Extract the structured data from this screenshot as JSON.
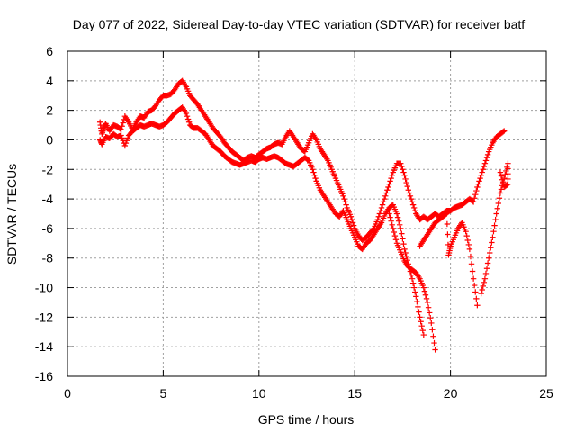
{
  "chart_data": {
    "type": "scatter",
    "title": "Day 077 of 2022, Sidereal Day-to-day VTEC variation (SDTVAR) for receiver batf",
    "xlabel": "GPS time / hours",
    "ylabel": "SDTVAR / TECUs",
    "xlim": [
      0,
      25
    ],
    "ylim": [
      -16,
      6
    ],
    "xticks": [
      0,
      5,
      10,
      15,
      20,
      25
    ],
    "yticks": [
      -16,
      -14,
      -12,
      -10,
      -8,
      -6,
      -4,
      -2,
      0,
      2,
      4,
      6
    ],
    "grid": true,
    "marker": "+",
    "color": "#ff0000",
    "series": [
      {
        "points": [
          [
            1.7,
            1.2
          ],
          [
            1.8,
            0.4
          ],
          [
            1.9,
            0.8
          ],
          [
            2.0,
            1.1
          ],
          [
            2.2,
            0.6
          ],
          [
            2.4,
            1.0
          ],
          [
            2.6,
            0.9
          ],
          [
            2.8,
            0.7
          ],
          [
            3.0,
            1.6
          ],
          [
            3.2,
            1.2
          ],
          [
            3.4,
            0.7
          ],
          [
            3.6,
            1.2
          ],
          [
            3.8,
            1.6
          ],
          [
            4.0,
            1.5
          ],
          [
            4.2,
            1.9
          ],
          [
            4.4,
            2.0
          ],
          [
            4.6,
            2.3
          ],
          [
            4.8,
            2.7
          ],
          [
            5.0,
            3.0
          ],
          [
            5.2,
            3.0
          ],
          [
            5.4,
            3.1
          ],
          [
            5.6,
            3.4
          ],
          [
            5.8,
            3.8
          ],
          [
            6.0,
            4.0
          ],
          [
            6.2,
            3.6
          ],
          [
            6.4,
            3.0
          ],
          [
            6.6,
            2.7
          ],
          [
            6.8,
            2.4
          ],
          [
            7.0,
            2.0
          ],
          [
            7.2,
            1.6
          ],
          [
            7.4,
            1.2
          ],
          [
            7.6,
            0.8
          ],
          [
            7.8,
            0.5
          ],
          [
            8.0,
            0.2
          ],
          [
            8.2,
            -0.2
          ],
          [
            8.4,
            -0.5
          ],
          [
            8.6,
            -0.8
          ],
          [
            8.8,
            -1.0
          ],
          [
            9.0,
            -1.2
          ],
          [
            9.2,
            -1.4
          ],
          [
            9.4,
            -1.2
          ],
          [
            9.6,
            -1.1
          ],
          [
            9.8,
            -1.2
          ],
          [
            10.0,
            -1.0
          ],
          [
            10.2,
            -0.8
          ],
          [
            10.4,
            -0.6
          ],
          [
            10.6,
            -0.5
          ],
          [
            10.8,
            -0.3
          ],
          [
            11.0,
            -0.2
          ],
          [
            11.2,
            -0.3
          ],
          [
            11.4,
            0.2
          ],
          [
            11.6,
            0.6
          ],
          [
            11.8,
            0.2
          ],
          [
            12.0,
            -0.2
          ],
          [
            12.2,
            -0.6
          ],
          [
            12.4,
            -0.8
          ],
          [
            12.6,
            -0.2
          ],
          [
            12.8,
            0.4
          ],
          [
            13.0,
            0.0
          ],
          [
            13.2,
            -0.6
          ],
          [
            13.4,
            -1.0
          ],
          [
            13.6,
            -1.4
          ],
          [
            13.8,
            -2.0
          ],
          [
            14.0,
            -2.6
          ],
          [
            14.2,
            -3.2
          ],
          [
            14.4,
            -3.8
          ],
          [
            14.6,
            -4.6
          ],
          [
            14.8,
            -5.2
          ],
          [
            15.0,
            -6.0
          ],
          [
            15.2,
            -6.5
          ],
          [
            15.4,
            -6.8
          ],
          [
            15.6,
            -6.6
          ],
          [
            15.8,
            -6.3
          ],
          [
            16.0,
            -6.0
          ],
          [
            16.2,
            -5.4
          ],
          [
            16.4,
            -4.6
          ],
          [
            16.6,
            -3.8
          ],
          [
            16.8,
            -3.0
          ],
          [
            17.0,
            -2.2
          ],
          [
            17.2,
            -1.6
          ],
          [
            17.4,
            -1.6
          ],
          [
            17.6,
            -2.4
          ],
          [
            17.8,
            -3.4
          ],
          [
            18.0,
            -4.2
          ],
          [
            18.2,
            -5.0
          ],
          [
            18.4,
            -5.4
          ],
          [
            18.6,
            -5.2
          ],
          [
            18.8,
            -5.4
          ],
          [
            19.0,
            -5.2
          ],
          [
            19.2,
            -5.0
          ],
          [
            19.4,
            -5.2
          ],
          [
            19.6,
            -5.0
          ],
          [
            19.8,
            -4.8
          ],
          [
            20.0,
            -4.8
          ],
          [
            20.2,
            -4.6
          ],
          [
            20.4,
            -4.5
          ],
          [
            20.6,
            -4.4
          ],
          [
            20.8,
            -4.2
          ],
          [
            21.0,
            -4.0
          ],
          [
            21.2,
            -4.2
          ],
          [
            21.4,
            -3.2
          ],
          [
            21.6,
            -2.4
          ],
          [
            21.8,
            -1.6
          ],
          [
            22.0,
            -0.8
          ],
          [
            22.2,
            -0.2
          ],
          [
            22.4,
            0.2
          ],
          [
            22.6,
            0.4
          ],
          [
            22.8,
            0.6
          ]
        ]
      },
      {
        "points": [
          [
            1.7,
            0.0
          ],
          [
            1.8,
            -0.3
          ],
          [
            2.0,
            0.2
          ],
          [
            2.2,
            0.1
          ],
          [
            2.4,
            0.4
          ],
          [
            2.6,
            0.2
          ],
          [
            2.8,
            0.3
          ],
          [
            3.0,
            -0.4
          ],
          [
            3.2,
            0.3
          ],
          [
            3.4,
            0.6
          ],
          [
            3.6,
            0.8
          ],
          [
            3.8,
            1.0
          ],
          [
            4.0,
            0.9
          ],
          [
            4.2,
            1.0
          ],
          [
            4.4,
            1.1
          ],
          [
            4.6,
            1.0
          ],
          [
            4.8,
            0.9
          ],
          [
            5.0,
            1.0
          ],
          [
            5.2,
            1.2
          ],
          [
            5.4,
            1.5
          ],
          [
            5.6,
            1.8
          ],
          [
            5.8,
            2.0
          ],
          [
            6.0,
            2.2
          ],
          [
            6.2,
            1.8
          ],
          [
            6.4,
            1.0
          ],
          [
            6.6,
            0.8
          ],
          [
            6.8,
            0.8
          ],
          [
            7.0,
            0.6
          ],
          [
            7.2,
            0.4
          ],
          [
            7.4,
            0.0
          ],
          [
            7.6,
            -0.4
          ],
          [
            7.8,
            -0.6
          ],
          [
            8.0,
            -0.8
          ],
          [
            8.2,
            -1.1
          ],
          [
            8.4,
            -1.3
          ],
          [
            8.6,
            -1.5
          ],
          [
            8.8,
            -1.6
          ],
          [
            9.0,
            -1.7
          ],
          [
            9.2,
            -1.6
          ],
          [
            9.4,
            -1.5
          ],
          [
            9.6,
            -1.4
          ],
          [
            9.8,
            -1.5
          ],
          [
            10.0,
            -1.3
          ],
          [
            10.2,
            -1.2
          ],
          [
            10.4,
            -1.3
          ],
          [
            10.6,
            -1.2
          ],
          [
            10.8,
            -1.1
          ],
          [
            11.0,
            -1.2
          ],
          [
            11.2,
            -1.4
          ],
          [
            11.4,
            -1.6
          ],
          [
            11.6,
            -1.7
          ],
          [
            11.8,
            -1.8
          ],
          [
            12.0,
            -1.6
          ],
          [
            12.2,
            -1.4
          ],
          [
            12.4,
            -1.2
          ],
          [
            12.6,
            -1.4
          ],
          [
            12.8,
            -2.0
          ],
          [
            13.0,
            -2.8
          ],
          [
            13.2,
            -3.4
          ],
          [
            13.4,
            -3.8
          ],
          [
            13.6,
            -4.2
          ],
          [
            13.8,
            -4.6
          ],
          [
            14.0,
            -5.0
          ],
          [
            14.2,
            -5.2
          ],
          [
            14.4,
            -4.8
          ],
          [
            14.6,
            -5.4
          ],
          [
            14.8,
            -6.0
          ],
          [
            15.0,
            -6.6
          ],
          [
            15.2,
            -7.2
          ],
          [
            15.4,
            -7.4
          ],
          [
            15.6,
            -7.0
          ],
          [
            15.8,
            -6.8
          ],
          [
            16.0,
            -6.4
          ],
          [
            16.2,
            -6.0
          ],
          [
            16.4,
            -5.6
          ],
          [
            16.6,
            -5.0
          ],
          [
            16.8,
            -4.6
          ],
          [
            17.0,
            -4.4
          ],
          [
            17.2,
            -5.0
          ],
          [
            17.4,
            -6.0
          ],
          [
            17.6,
            -7.4
          ],
          [
            17.8,
            -8.4
          ],
          [
            18.0,
            -9.4
          ],
          [
            18.2,
            -10.6
          ],
          [
            18.4,
            -12.0
          ],
          [
            18.6,
            -13.2
          ]
        ]
      },
      {
        "points": [
          [
            16.8,
            -5.0
          ],
          [
            17.0,
            -6.0
          ],
          [
            17.2,
            -7.0
          ],
          [
            17.4,
            -7.6
          ],
          [
            17.6,
            -8.2
          ],
          [
            17.8,
            -8.6
          ],
          [
            18.0,
            -8.8
          ],
          [
            18.2,
            -9.0
          ],
          [
            18.4,
            -9.4
          ],
          [
            18.6,
            -10.0
          ],
          [
            18.8,
            -11.0
          ],
          [
            19.0,
            -12.4
          ],
          [
            19.2,
            -14.2
          ]
        ]
      },
      {
        "points": [
          [
            18.4,
            -7.2
          ],
          [
            18.6,
            -6.8
          ],
          [
            18.8,
            -6.4
          ],
          [
            19.0,
            -6.0
          ],
          [
            19.2,
            -5.6
          ],
          [
            19.4,
            -5.4
          ],
          [
            19.6,
            -5.2
          ],
          [
            19.8,
            -5.0
          ],
          [
            19.9,
            -7.8
          ],
          [
            20.0,
            -7.2
          ],
          [
            20.2,
            -6.6
          ],
          [
            20.4,
            -6.0
          ],
          [
            20.6,
            -5.6
          ],
          [
            20.8,
            -6.2
          ],
          [
            21.0,
            -7.4
          ],
          [
            21.2,
            -9.4
          ],
          [
            21.4,
            -11.2
          ]
        ]
      },
      {
        "points": [
          [
            21.6,
            -10.4
          ],
          [
            21.8,
            -9.4
          ],
          [
            22.0,
            -8.0
          ],
          [
            22.2,
            -6.6
          ],
          [
            22.4,
            -5.0
          ],
          [
            22.6,
            -3.6
          ],
          [
            22.8,
            -2.6
          ],
          [
            23.0,
            -1.6
          ],
          [
            23.0,
            -3.0
          ],
          [
            22.8,
            -3.2
          ],
          [
            22.6,
            -2.2
          ]
        ]
      }
    ]
  }
}
